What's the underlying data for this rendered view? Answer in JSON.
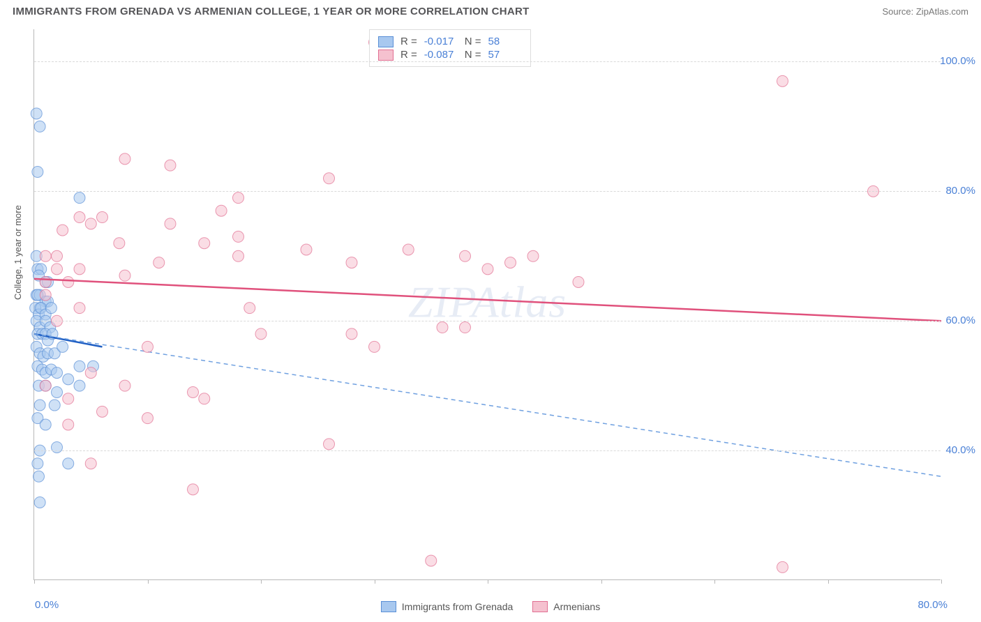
{
  "header": {
    "title": "IMMIGRANTS FROM GRENADA VS ARMENIAN COLLEGE, 1 YEAR OR MORE CORRELATION CHART",
    "source_prefix": "Source: ",
    "source_name": "ZipAtlas.com"
  },
  "watermark": "ZIPAtlas",
  "chart": {
    "type": "scatter",
    "ylabel": "College, 1 year or more",
    "xlim": [
      0,
      80
    ],
    "ylim": [
      20,
      105
    ],
    "x_ticks": [
      0,
      10,
      20,
      30,
      40,
      50,
      60,
      70,
      80
    ],
    "y_gridlines": [
      40,
      60,
      80,
      100
    ],
    "x_min_label": "0.0%",
    "x_max_label": "80.0%",
    "y_tick_labels": {
      "40": "40.0%",
      "60": "60.0%",
      "80": "80.0%",
      "100": "100.0%"
    },
    "background_color": "#ffffff",
    "grid_color": "#d9d9d9",
    "axis_color": "#b8b8b8",
    "axis_label_color": "#4a80d6",
    "marker_radius": 8,
    "marker_opacity": 0.55,
    "series": [
      {
        "id": "grenada",
        "label": "Immigrants from Grenada",
        "fill": "#a8c8ef",
        "stroke": "#5a8fd6",
        "trend_color": "#1f5fc4",
        "trend_width": 2.5,
        "trend_dashed_color": "#6fa0e0",
        "R": "-0.017",
        "N": "58",
        "trend_solid": {
          "x1": 0,
          "y1": 58,
          "x2": 6,
          "y2": 56
        },
        "trend_dashed": {
          "x1": 0,
          "y1": 58,
          "x2": 80,
          "y2": 36
        },
        "points": [
          [
            0.2,
            92
          ],
          [
            0.5,
            90
          ],
          [
            0.3,
            83
          ],
          [
            4,
            79
          ],
          [
            0.2,
            70
          ],
          [
            0.3,
            68
          ],
          [
            0.6,
            68
          ],
          [
            0.4,
            67
          ],
          [
            1,
            66
          ],
          [
            1.2,
            66
          ],
          [
            0.2,
            64
          ],
          [
            0.5,
            64
          ],
          [
            1,
            63
          ],
          [
            1.2,
            63
          ],
          [
            0.5,
            62
          ],
          [
            0.3,
            64
          ],
          [
            0.1,
            62
          ],
          [
            0.4,
            61
          ],
          [
            0.6,
            62
          ],
          [
            1,
            61
          ],
          [
            1.5,
            62
          ],
          [
            0.2,
            60
          ],
          [
            0.5,
            59
          ],
          [
            1,
            60
          ],
          [
            1.4,
            59
          ],
          [
            0.3,
            58
          ],
          [
            0.7,
            58
          ],
          [
            1,
            58
          ],
          [
            1.2,
            57
          ],
          [
            1.6,
            58
          ],
          [
            0.2,
            56
          ],
          [
            0.5,
            55
          ],
          [
            0.8,
            54.5
          ],
          [
            1.2,
            55
          ],
          [
            1.8,
            55
          ],
          [
            2.5,
            56
          ],
          [
            0.3,
            53
          ],
          [
            0.7,
            52.5
          ],
          [
            1,
            52
          ],
          [
            1.5,
            52.5
          ],
          [
            2,
            52
          ],
          [
            4,
            53
          ],
          [
            5.2,
            53
          ],
          [
            3,
            51
          ],
          [
            0.4,
            50
          ],
          [
            1,
            50
          ],
          [
            2,
            49
          ],
          [
            4,
            50
          ],
          [
            0.5,
            47
          ],
          [
            1.8,
            47
          ],
          [
            0.3,
            45
          ],
          [
            1,
            44
          ],
          [
            0.5,
            40
          ],
          [
            2,
            40.5
          ],
          [
            0.3,
            38
          ],
          [
            3,
            38
          ],
          [
            0.4,
            36
          ],
          [
            0.5,
            32
          ]
        ]
      },
      {
        "id": "armenians",
        "label": "Armenians",
        "fill": "#f5c1cf",
        "stroke": "#e16f92",
        "trend_color": "#e0517c",
        "trend_width": 2.5,
        "R": "-0.087",
        "N": "57",
        "trend_solid": {
          "x1": 0,
          "y1": 66.5,
          "x2": 80,
          "y2": 60
        },
        "points": [
          [
            30,
            103
          ],
          [
            66,
            97
          ],
          [
            74,
            80
          ],
          [
            8,
            85
          ],
          [
            12,
            84
          ],
          [
            26,
            82
          ],
          [
            18,
            79
          ],
          [
            1,
            70
          ],
          [
            2.5,
            74
          ],
          [
            4,
            76
          ],
          [
            5,
            75
          ],
          [
            2,
            70
          ],
          [
            6,
            76
          ],
          [
            7.5,
            72
          ],
          [
            12,
            75
          ],
          [
            15,
            72
          ],
          [
            16.5,
            77
          ],
          [
            18,
            73
          ],
          [
            11,
            69
          ],
          [
            4,
            68
          ],
          [
            8,
            67
          ],
          [
            18,
            70
          ],
          [
            24,
            71
          ],
          [
            28,
            69
          ],
          [
            33,
            71
          ],
          [
            38,
            70
          ],
          [
            40,
            68
          ],
          [
            42,
            69
          ],
          [
            44,
            70
          ],
          [
            48,
            66
          ],
          [
            1,
            64
          ],
          [
            4,
            62
          ],
          [
            2,
            60
          ],
          [
            28,
            58
          ],
          [
            30,
            56
          ],
          [
            36,
            59
          ],
          [
            38,
            59
          ],
          [
            5,
            52
          ],
          [
            10,
            56
          ],
          [
            8,
            50
          ],
          [
            14,
            49
          ],
          [
            15,
            48
          ],
          [
            3,
            48
          ],
          [
            6,
            46
          ],
          [
            10,
            45
          ],
          [
            14,
            34
          ],
          [
            26,
            41
          ],
          [
            35,
            23
          ],
          [
            66,
            22
          ],
          [
            5,
            38
          ],
          [
            3,
            44
          ],
          [
            1,
            66
          ],
          [
            2,
            68
          ],
          [
            3,
            66
          ],
          [
            1,
            50
          ],
          [
            19,
            62
          ],
          [
            20,
            58
          ]
        ]
      }
    ]
  },
  "bottom_legend": {
    "items": [
      {
        "swatch_fill": "#a8c8ef",
        "swatch_stroke": "#5a8fd6",
        "label": "Immigrants from Grenada"
      },
      {
        "swatch_fill": "#f5c1cf",
        "swatch_stroke": "#e16f92",
        "label": "Armenians"
      }
    ]
  }
}
